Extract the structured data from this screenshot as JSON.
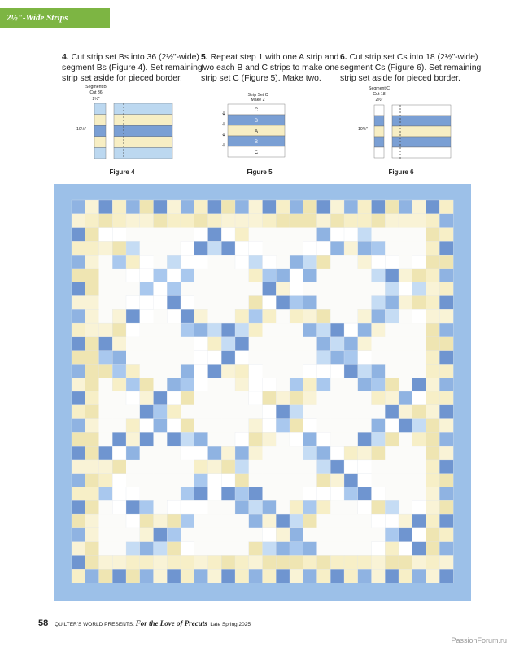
{
  "header": {
    "section_title": "2½\"-Wide Strips"
  },
  "steps": [
    {
      "num": "4.",
      "text": "Cut strip set Bs into 36 (2½\"-wide) segment Bs (Figure 4). Set remaining strip set aside for pieced border."
    },
    {
      "num": "5.",
      "text": "Repeat step 1 with one A strip and two each B and C strips to make one strip set C (Figure 5). Make two."
    },
    {
      "num": "6.",
      "text": "Cut strip set Cs into 18 (2½\"-wide) segment Cs (Figure 6). Set remaining strip set aside for pieced border."
    }
  ],
  "figures": {
    "fig4": {
      "caption": "Figure 4",
      "seg_label": "Segment B",
      "cut_label": "Cut 36",
      "width_label": "2½\"",
      "height_label": "10½\""
    },
    "fig5": {
      "caption": "Figure 5",
      "title": "Strip Set C",
      "make_label": "Make 2",
      "strips": [
        "C",
        "B",
        "A",
        "B",
        "C"
      ]
    },
    "fig6": {
      "caption": "Figure 6",
      "seg_label": "Segment C",
      "cut_label": "Cut 18",
      "width_label": "2½\"",
      "height_label": "10½\""
    }
  },
  "colors": {
    "light_blue": "#bcd8f0",
    "mid_blue": "#7a9fd4",
    "cream": "#f7eec4",
    "white": "#ffffff",
    "border_blue": "#9cc0e8",
    "dark_blue": "#3d5fae",
    "section_green": "#7db543"
  },
  "footer": {
    "page_number": "58",
    "publisher": "QUILTER'S WORLD PRESENTS:",
    "title": "For the Love of Precuts",
    "issue": "Late Spring 2025"
  },
  "watermark": "PassionForum.ru"
}
